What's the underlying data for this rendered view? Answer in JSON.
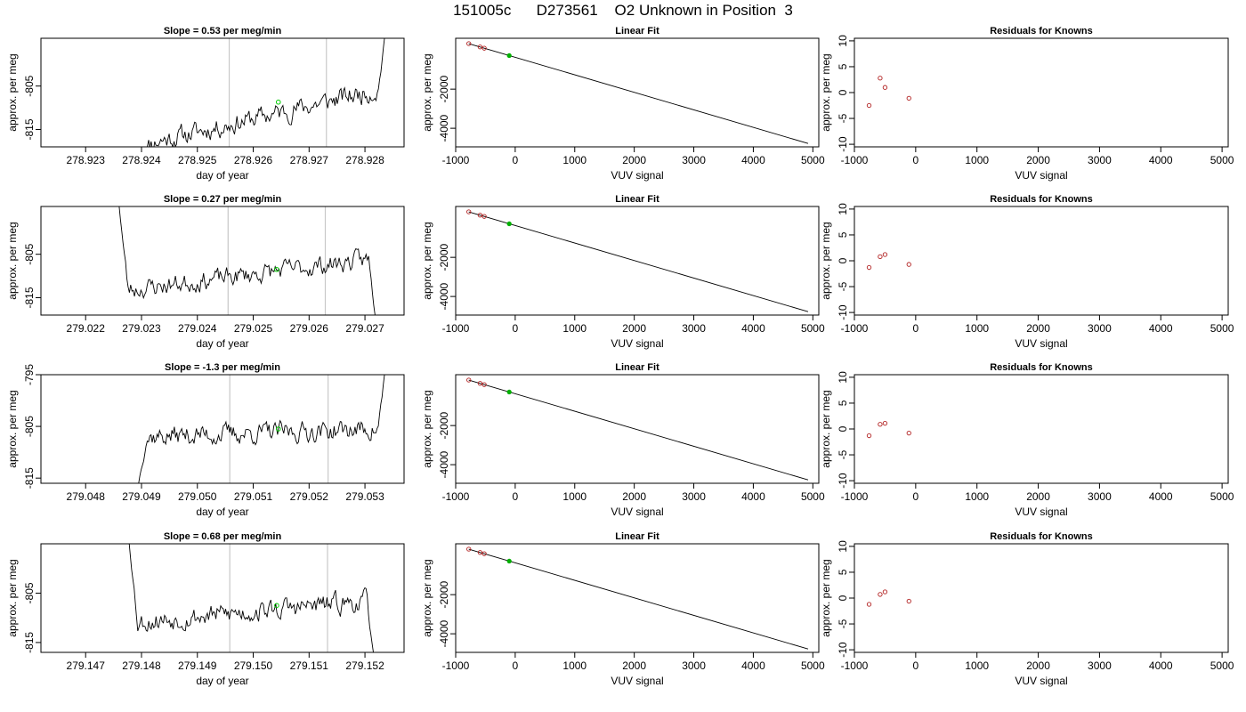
{
  "figure": {
    "title": "151005c      D273561    O2 Unknown in Position  3"
  },
  "chart_data": [
    {
      "type": "line",
      "row": 0,
      "col": 0,
      "title": "Slope =  0.53  per meg/min",
      "xlabel": "day of year",
      "ylabel": "approx. per meg",
      "xlim": [
        278.9222,
        278.9287
      ],
      "ylim": [
        -819,
        -794
      ],
      "xticks": [
        "278.923",
        "278.924",
        "278.925",
        "278.926",
        "278.927",
        "278.928"
      ],
      "xtick_values": [
        278.923,
        278.924,
        278.925,
        278.926,
        278.927,
        278.928
      ],
      "yticks": [
        "-805",
        "-815"
      ],
      "ytick_values": [
        -805,
        -815
      ],
      "vlines": [
        278.92557,
        278.92731
      ],
      "marker": {
        "x": 278.92645,
        "y": -808.7,
        "color": "#00cc00"
      },
      "series": {
        "t_start": 278.92402,
        "t_end": 278.92835,
        "base_start": -818.5,
        "base_end": -805.5,
        "noise": 1.9,
        "seed": 11,
        "lead_in": true,
        "tail": "up_steep",
        "tail_value": -794
      }
    },
    {
      "type": "scatter",
      "row": 0,
      "col": 1,
      "title": "Linear Fit",
      "xlabel": "VUV signal",
      "ylabel": "approx. per meg",
      "xlim": [
        -1000,
        5100
      ],
      "ylim": [
        -4950,
        600
      ],
      "xticks": [
        "-1000",
        "0",
        "1000",
        "2000",
        "3000",
        "4000",
        "5000"
      ],
      "xtick_values": [
        -1000,
        0,
        1000,
        2000,
        3000,
        4000,
        5000
      ],
      "yticks": [
        "-2000",
        "-4000"
      ],
      "ytick_values": [
        -2000,
        -4000
      ],
      "fit_line": [
        [
          -780,
          326
        ],
        [
          4920,
          -4777
        ]
      ],
      "points": [
        {
          "x": -780,
          "y": 326,
          "color": "#b22222"
        },
        {
          "x": -590,
          "y": 155,
          "color": "#b22222"
        },
        {
          "x": -520,
          "y": 92,
          "color": "#b22222"
        },
        {
          "x": -100,
          "y": -285,
          "color": "#00b000"
        }
      ]
    },
    {
      "type": "scatter",
      "row": 0,
      "col": 2,
      "title": "Residuals for Knowns",
      "xlabel": "VUV signal",
      "ylabel": "approx. per meg",
      "xlim": [
        -1000,
        5100
      ],
      "ylim": [
        -10.5,
        10.5
      ],
      "xticks": [
        "-1000",
        "0",
        "1000",
        "2000",
        "3000",
        "4000",
        "5000"
      ],
      "xtick_values": [
        -1000,
        0,
        1000,
        2000,
        3000,
        4000,
        5000
      ],
      "yticks": [
        "10",
        "5",
        "0",
        "-5",
        "-10"
      ],
      "ytick_values": [
        10,
        5,
        0,
        -5,
        -10
      ],
      "points": [
        {
          "x": -760,
          "y": -2.5,
          "color": "#b22222"
        },
        {
          "x": -580,
          "y": 2.8,
          "color": "#b22222"
        },
        {
          "x": -500,
          "y": 1.0,
          "color": "#b22222"
        },
        {
          "x": -110,
          "y": -1.1,
          "color": "#b22222"
        }
      ]
    },
    {
      "type": "line",
      "row": 1,
      "col": 0,
      "title": "Slope =  0.27  per meg/min",
      "xlabel": "day of year",
      "ylabel": "approx. per meg",
      "xlim": [
        279.0212,
        279.0277
      ],
      "ylim": [
        -819,
        -794
      ],
      "xticks": [
        "279.022",
        "279.023",
        "279.024",
        "279.025",
        "279.026",
        "279.027"
      ],
      "xtick_values": [
        279.022,
        279.023,
        279.024,
        279.025,
        279.026,
        279.027
      ],
      "yticks": [
        "-805",
        "-815"
      ],
      "ytick_values": [
        -805,
        -815
      ],
      "vlines": [
        279.02455,
        279.02629
      ],
      "marker": {
        "x": 279.02542,
        "y": -808.5,
        "color": "#00cc00"
      },
      "series": {
        "t_start": 279.0226,
        "t_end": 279.02718,
        "base_start": -813.5,
        "base_end": -806.0,
        "noise": 1.8,
        "seed": 23,
        "head": "down_steep",
        "head_value": -794,
        "tail": "down_steep",
        "tail_value": -819
      }
    },
    {
      "type": "scatter",
      "row": 1,
      "col": 1,
      "title": "Linear Fit",
      "xlabel": "VUV signal",
      "ylabel": "approx. per meg",
      "xlim": [
        -1000,
        5100
      ],
      "ylim": [
        -4950,
        600
      ],
      "xticks": [
        "-1000",
        "0",
        "1000",
        "2000",
        "3000",
        "4000",
        "5000"
      ],
      "xtick_values": [
        -1000,
        0,
        1000,
        2000,
        3000,
        4000,
        5000
      ],
      "yticks": [
        "-2000",
        "-4000"
      ],
      "ytick_values": [
        -2000,
        -4000
      ],
      "fit_line": [
        [
          -780,
          326
        ],
        [
          4920,
          -4777
        ]
      ],
      "points": [
        {
          "x": -780,
          "y": 326,
          "color": "#b22222"
        },
        {
          "x": -590,
          "y": 155,
          "color": "#b22222"
        },
        {
          "x": -520,
          "y": 92,
          "color": "#b22222"
        },
        {
          "x": -100,
          "y": -285,
          "color": "#00b000"
        }
      ]
    },
    {
      "type": "scatter",
      "row": 1,
      "col": 2,
      "title": "Residuals for Knowns",
      "xlabel": "VUV signal",
      "ylabel": "approx. per meg",
      "xlim": [
        -1000,
        5100
      ],
      "ylim": [
        -10.5,
        10.5
      ],
      "xticks": [
        "-1000",
        "0",
        "1000",
        "2000",
        "3000",
        "4000",
        "5000"
      ],
      "xtick_values": [
        -1000,
        0,
        1000,
        2000,
        3000,
        4000,
        5000
      ],
      "yticks": [
        "10",
        "5",
        "0",
        "-5",
        "-10"
      ],
      "ytick_values": [
        10,
        5,
        0,
        -5,
        -10
      ],
      "points": [
        {
          "x": -760,
          "y": -1.3,
          "color": "#b22222"
        },
        {
          "x": -580,
          "y": 0.8,
          "color": "#b22222"
        },
        {
          "x": -500,
          "y": 1.2,
          "color": "#b22222"
        },
        {
          "x": -110,
          "y": -0.7,
          "color": "#b22222"
        }
      ]
    },
    {
      "type": "line",
      "row": 2,
      "col": 0,
      "title": "Slope =  -1.3  per meg/min",
      "xlabel": "day of year",
      "ylabel": "approx. per meg",
      "xlim": [
        279.0472,
        279.0537
      ],
      "ylim": [
        -816,
        -795
      ],
      "xticks": [
        "279.048",
        "279.049",
        "279.050",
        "279.051",
        "279.052",
        "279.053"
      ],
      "xtick_values": [
        279.048,
        279.049,
        279.05,
        279.051,
        279.052,
        279.053
      ],
      "yticks": [
        "-795",
        "-805",
        "-815"
      ],
      "ytick_values": [
        -795,
        -805,
        -815
      ],
      "vlines": [
        279.05058,
        279.05234
      ],
      "marker": {
        "x": 279.05145,
        "y": -805.5,
        "color": "#00cc00"
      },
      "series": {
        "t_start": 279.04895,
        "t_end": 279.05335,
        "base_start": -807.0,
        "base_end": -805.5,
        "noise": 1.6,
        "seed": 37,
        "lead_in": true,
        "lead_from": -816,
        "tail": "up_steep",
        "tail_value": -795
      }
    },
    {
      "type": "scatter",
      "row": 2,
      "col": 1,
      "title": "Linear Fit",
      "xlabel": "VUV signal",
      "ylabel": "approx. per meg",
      "xlim": [
        -1000,
        5100
      ],
      "ylim": [
        -4950,
        600
      ],
      "xticks": [
        "-1000",
        "0",
        "1000",
        "2000",
        "3000",
        "4000",
        "5000"
      ],
      "xtick_values": [
        -1000,
        0,
        1000,
        2000,
        3000,
        4000,
        5000
      ],
      "yticks": [
        "-2000",
        "-4000"
      ],
      "ytick_values": [
        -2000,
        -4000
      ],
      "fit_line": [
        [
          -780,
          326
        ],
        [
          4920,
          -4777
        ]
      ],
      "points": [
        {
          "x": -780,
          "y": 326,
          "color": "#b22222"
        },
        {
          "x": -590,
          "y": 155,
          "color": "#b22222"
        },
        {
          "x": -520,
          "y": 92,
          "color": "#b22222"
        },
        {
          "x": -100,
          "y": -285,
          "color": "#00b000"
        }
      ]
    },
    {
      "type": "scatter",
      "row": 2,
      "col": 2,
      "title": "Residuals for Knowns",
      "xlabel": "VUV signal",
      "ylabel": "approx. per meg",
      "xlim": [
        -1000,
        5100
      ],
      "ylim": [
        -10.5,
        10.5
      ],
      "xticks": [
        "-1000",
        "0",
        "1000",
        "2000",
        "3000",
        "4000",
        "5000"
      ],
      "xtick_values": [
        -1000,
        0,
        1000,
        2000,
        3000,
        4000,
        5000
      ],
      "yticks": [
        "10",
        "5",
        "0",
        "-5",
        "-10"
      ],
      "ytick_values": [
        10,
        5,
        0,
        -5,
        -10
      ],
      "points": [
        {
          "x": -760,
          "y": -1.3,
          "color": "#b22222"
        },
        {
          "x": -580,
          "y": 0.9,
          "color": "#b22222"
        },
        {
          "x": -500,
          "y": 1.1,
          "color": "#b22222"
        },
        {
          "x": -110,
          "y": -0.8,
          "color": "#b22222"
        }
      ]
    },
    {
      "type": "line",
      "row": 3,
      "col": 0,
      "title": "Slope =  0.68  per meg/min",
      "xlabel": "day of year",
      "ylabel": "approx. per meg",
      "xlim": [
        279.1462,
        279.1527
      ],
      "ylim": [
        -817,
        -795
      ],
      "xticks": [
        "279.147",
        "279.148",
        "279.149",
        "279.150",
        "279.151",
        "279.152"
      ],
      "xtick_values": [
        279.147,
        279.148,
        279.149,
        279.15,
        279.151,
        279.152
      ],
      "yticks": [
        "-805",
        "-815"
      ],
      "ytick_values": [
        -805,
        -815
      ],
      "vlines": [
        279.14958,
        279.15133
      ],
      "marker": {
        "x": 279.15042,
        "y": -807.5,
        "color": "#00cc00"
      },
      "series": {
        "t_start": 279.14778,
        "t_end": 279.15215,
        "base_start": -811.0,
        "base_end": -806.5,
        "noise": 1.7,
        "seed": 53,
        "head": "down_steep",
        "head_value": -795,
        "tail": "down_steep",
        "tail_value": -817
      }
    },
    {
      "type": "scatter",
      "row": 3,
      "col": 1,
      "title": "Linear Fit",
      "xlabel": "VUV signal",
      "ylabel": "approx. per meg",
      "xlim": [
        -1000,
        5100
      ],
      "ylim": [
        -4950,
        600
      ],
      "xticks": [
        "-1000",
        "0",
        "1000",
        "2000",
        "3000",
        "4000",
        "5000"
      ],
      "xtick_values": [
        -1000,
        0,
        1000,
        2000,
        3000,
        4000,
        5000
      ],
      "yticks": [
        "-2000",
        "-4000"
      ],
      "ytick_values": [
        -2000,
        -4000
      ],
      "fit_line": [
        [
          -780,
          326
        ],
        [
          4920,
          -4777
        ]
      ],
      "points": [
        {
          "x": -780,
          "y": 326,
          "color": "#b22222"
        },
        {
          "x": -590,
          "y": 155,
          "color": "#b22222"
        },
        {
          "x": -520,
          "y": 92,
          "color": "#b22222"
        },
        {
          "x": -100,
          "y": -285,
          "color": "#00b000"
        }
      ]
    },
    {
      "type": "scatter",
      "row": 3,
      "col": 2,
      "title": "Residuals for Knowns",
      "xlabel": "VUV signal",
      "ylabel": "approx. per meg",
      "xlim": [
        -1000,
        5100
      ],
      "ylim": [
        -10.5,
        10.5
      ],
      "xticks": [
        "-1000",
        "0",
        "1000",
        "2000",
        "3000",
        "4000",
        "5000"
      ],
      "xtick_values": [
        -1000,
        0,
        1000,
        2000,
        3000,
        4000,
        5000
      ],
      "yticks": [
        "10",
        "5",
        "0",
        "-5",
        "-10"
      ],
      "ytick_values": [
        10,
        5,
        0,
        -5,
        -10
      ],
      "points": [
        {
          "x": -760,
          "y": -1.2,
          "color": "#b22222"
        },
        {
          "x": -580,
          "y": 0.7,
          "color": "#b22222"
        },
        {
          "x": -500,
          "y": 1.2,
          "color": "#b22222"
        },
        {
          "x": -110,
          "y": -0.6,
          "color": "#b22222"
        }
      ]
    }
  ]
}
